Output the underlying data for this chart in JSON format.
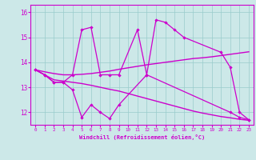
{
  "xlabel": "Windchill (Refroidissement éolien,°C)",
  "bg_color": "#cce8e8",
  "line_color": "#cc00cc",
  "grid_color": "#99cccc",
  "tick_label_color": "#cc00cc",
  "ylim": [
    11.5,
    16.3
  ],
  "yticks": [
    12,
    13,
    14,
    15,
    16
  ],
  "fig_bg": "#cce8e8",
  "smooth_up_y": [
    13.7,
    13.62,
    13.55,
    13.5,
    13.5,
    13.52,
    13.55,
    13.6,
    13.65,
    13.72,
    13.78,
    13.84,
    13.9,
    13.95,
    14.0,
    14.05,
    14.1,
    14.15,
    14.18,
    14.22,
    14.27,
    14.32,
    14.37,
    14.42
  ],
  "smooth_dn_y": [
    13.7,
    13.5,
    13.3,
    13.25,
    13.2,
    13.15,
    13.08,
    13.0,
    12.92,
    12.85,
    12.75,
    12.65,
    12.55,
    12.45,
    12.35,
    12.25,
    12.15,
    12.05,
    11.97,
    11.9,
    11.83,
    11.78,
    11.72,
    11.68
  ],
  "zigzag_a_x": [
    0,
    1,
    2,
    3,
    4,
    5,
    6,
    7,
    8,
    9,
    12,
    21,
    22,
    23
  ],
  "zigzag_a_y": [
    13.7,
    13.5,
    13.2,
    13.2,
    12.9,
    11.8,
    12.3,
    12.0,
    11.75,
    12.3,
    13.5,
    12.0,
    11.8,
    11.7
  ],
  "zigzag_b_x": [
    0,
    1,
    2,
    3,
    4,
    5,
    6,
    7,
    8,
    9,
    11,
    12,
    13,
    14,
    15,
    16,
    20,
    21,
    22,
    23
  ],
  "zigzag_b_y": [
    13.7,
    13.5,
    13.2,
    13.2,
    13.5,
    15.3,
    15.4,
    13.5,
    13.5,
    13.5,
    15.3,
    13.5,
    15.7,
    15.6,
    15.3,
    15.0,
    14.4,
    13.8,
    12.0,
    11.7
  ]
}
